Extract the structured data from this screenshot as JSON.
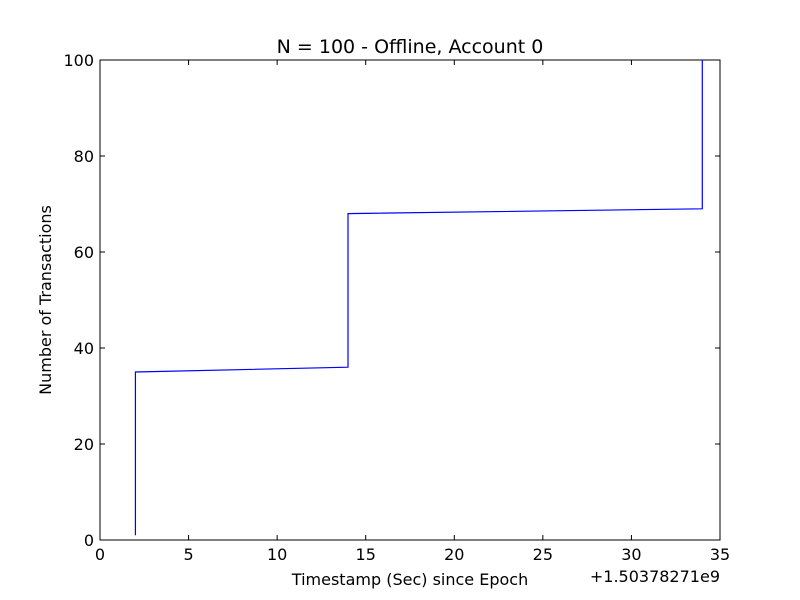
{
  "chart_data": {
    "type": "line",
    "title": "N = 100 - Offline, Account 0",
    "xlabel": "Timestamp (Sec) since Epoch",
    "ylabel": "Number of Transactions",
    "x_offset_label": "+1.50378271e9",
    "xlim": [
      0,
      35
    ],
    "ylim": [
      0,
      100
    ],
    "x_ticks": [
      0,
      5,
      10,
      15,
      20,
      25,
      30,
      35
    ],
    "y_ticks": [
      0,
      20,
      40,
      60,
      80,
      100
    ],
    "grid": false,
    "series": [
      {
        "color": "#0000ff",
        "points": [
          [
            2,
            1
          ],
          [
            2,
            35
          ],
          [
            14,
            36
          ],
          [
            14,
            68
          ],
          [
            34,
            69
          ],
          [
            34,
            100
          ]
        ]
      }
    ]
  }
}
